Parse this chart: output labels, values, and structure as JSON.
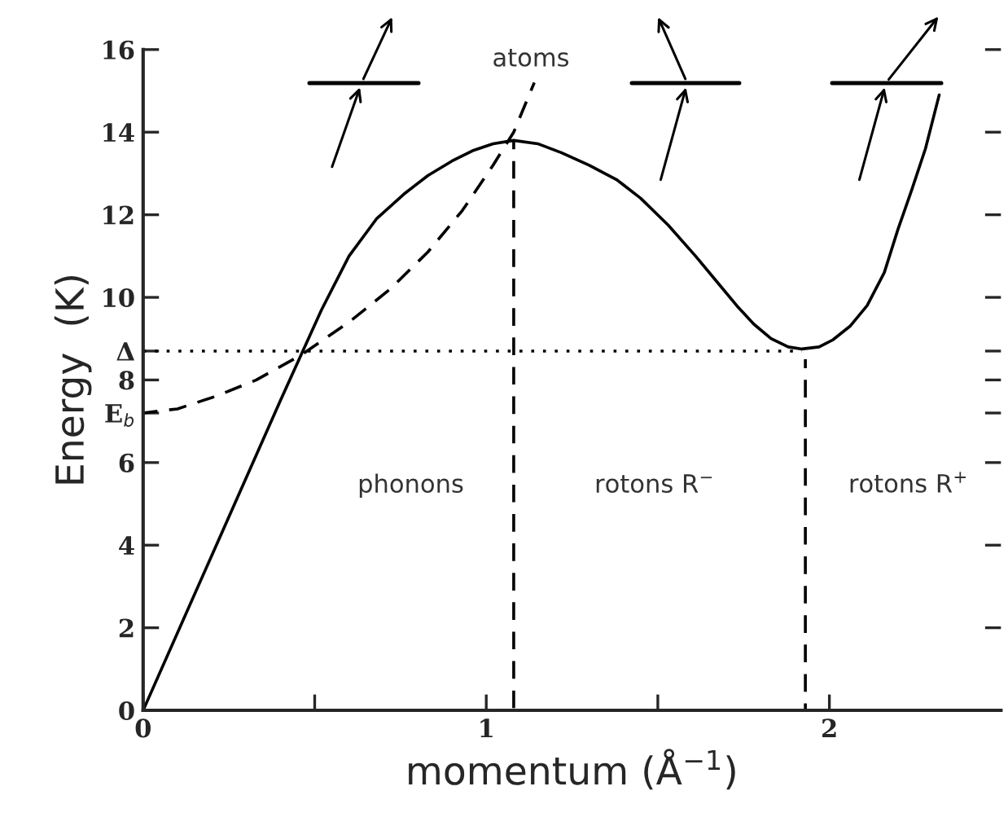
{
  "chart_data": {
    "type": "line",
    "xlabel": "momentum (Å$^{−1}$)",
    "ylabel": "Energy  (K)",
    "xlim": [
      0,
      2.5
    ],
    "ylim": [
      0,
      16
    ],
    "xticks": [
      0,
      {
        "value": 0.5,
        "label": null
      },
      1,
      {
        "value": 1.5,
        "label": null
      },
      2
    ],
    "yticks": [
      0,
      2,
      4,
      6,
      {
        "value": 7.2,
        "label": "E$_{b}$"
      },
      8,
      {
        "value": 8.7,
        "label": "Δ"
      },
      10,
      12,
      14,
      16
    ],
    "grid": false,
    "legend": false,
    "marker": "none",
    "series": [
      {
        "color": "#000000",
        "line_style": "solid",
        "x": [
          0,
          0.2,
          0.4,
          0.46,
          0.52,
          0.6,
          0.68,
          0.76,
          0.83,
          0.9,
          0.96,
          1.02,
          1.08,
          1.15,
          1.22,
          1.3,
          1.38,
          1.45,
          1.53,
          1.61,
          1.67,
          1.73,
          1.78,
          1.83,
          1.88,
          1.92,
          1.97,
          2.01,
          2.06,
          2.11,
          2.16,
          2.2,
          2.24,
          2.28,
          2.32
        ],
        "values": [
          0,
          3.75,
          7.5,
          8.6,
          9.7,
          11.0,
          11.9,
          12.5,
          12.95,
          13.3,
          13.55,
          13.72,
          13.8,
          13.72,
          13.5,
          13.2,
          12.85,
          12.4,
          11.75,
          11.0,
          10.4,
          9.8,
          9.35,
          9.0,
          8.8,
          8.75,
          8.8,
          8.97,
          9.3,
          9.8,
          10.6,
          11.65,
          12.6,
          13.6,
          14.9
        ]
      },
      {
        "color": "#000000",
        "line_style": "dashed",
        "x": [
          0,
          0.1,
          0.21,
          0.33,
          0.46,
          0.6,
          0.72,
          0.83,
          0.93,
          1.02,
          1.08,
          1.14
        ],
        "values": [
          7.2,
          7.3,
          7.6,
          8.0,
          8.6,
          9.4,
          10.2,
          11.1,
          12.1,
          13.2,
          14.0,
          15.2
        ]
      },
      {
        "color": "#000000",
        "line_style": "dashed",
        "x": [
          1.08,
          1.08
        ],
        "values": [
          0,
          13.8
        ]
      },
      {
        "color": "#000000",
        "line_style": "dashed",
        "x": [
          1.93,
          1.93
        ],
        "values": [
          0,
          8.5
        ]
      },
      {
        "color": "#000000",
        "line_style": "dotted",
        "x": [
          0,
          1.92
        ],
        "values": [
          8.7,
          8.7
        ]
      }
    ],
    "annotations": [
      "atoms",
      "phonons",
      "rotons R$^{−}$",
      "rotons R$^{+}$"
    ]
  }
}
